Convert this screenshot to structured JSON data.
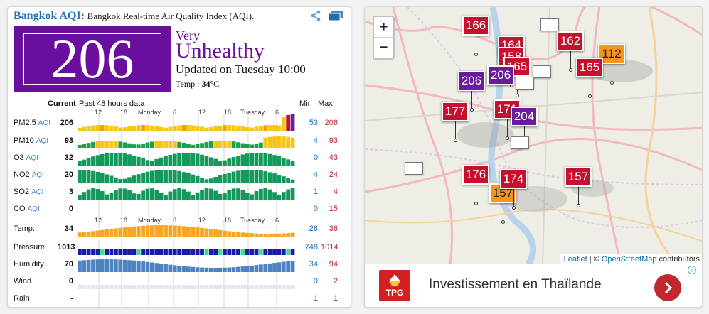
{
  "header": {
    "city": "Bangkok AQI:",
    "description": "Bangkok Real-time Air Quality Index (AQI)."
  },
  "aqi": {
    "value": "206",
    "level_line1": "Very",
    "level_line2": "Unhealthy",
    "updated": "Updated on Tuesday 10:00",
    "temp_label": "Temp.:",
    "temp_value": "34",
    "temp_unit": "°C",
    "color": "#6a0f9d"
  },
  "table": {
    "current_label": "Current",
    "history_label": "Past 48 hours data",
    "min_label": "Min",
    "max_label": "Max",
    "tick_labels": [
      "12",
      "18",
      "Monday",
      "6",
      "12",
      "18",
      "Tuesday",
      "6"
    ],
    "rows": [
      {
        "name": "PM2.5",
        "sub": "AQI",
        "current": "206",
        "min": "53",
        "max": "206"
      },
      {
        "name": "PM10",
        "sub": "AQI",
        "current": "93",
        "min": "4",
        "max": "93"
      },
      {
        "name": "O3",
        "sub": "AQI",
        "current": "32",
        "min": "0",
        "max": "43"
      },
      {
        "name": "NO2",
        "sub": "AQI",
        "current": "20",
        "min": "4",
        "max": "24"
      },
      {
        "name": "SO2",
        "sub": "AQI",
        "current": "3",
        "min": "1",
        "max": "4"
      },
      {
        "name": "CO",
        "sub": "AQI",
        "current": "0",
        "min": "0",
        "max": "15"
      },
      {
        "name": "Temp.",
        "sub": "",
        "current": "34",
        "min": "28",
        "max": "36"
      },
      {
        "name": "Pressure",
        "sub": "",
        "current": "1013",
        "min": "748",
        "max": "1014"
      },
      {
        "name": "Humidity",
        "sub": "",
        "current": "70",
        "min": "34",
        "max": "94"
      },
      {
        "name": "Wind",
        "sub": "",
        "current": "0",
        "min": "0",
        "max": "2"
      },
      {
        "name": "Rain",
        "sub": "",
        "current": "-",
        "min": "1",
        "max": "1"
      }
    ]
  },
  "map": {
    "zoom_in": "+",
    "zoom_out": "−",
    "markers": [
      {
        "value": "166",
        "color": "#c8102e"
      },
      {
        "value": "164",
        "color": "#c8102e"
      },
      {
        "value": "158",
        "color": "#c8102e"
      },
      {
        "value": "165",
        "color": "#c8102e"
      },
      {
        "value": "162",
        "color": "#c8102e"
      },
      {
        "value": "112",
        "color": "#f7941d"
      },
      {
        "value": "165",
        "color": "#c8102e"
      },
      {
        "value": "206",
        "color": "#6a1b9a"
      },
      {
        "value": "206",
        "color": "#6a1b9a"
      },
      {
        "value": "177",
        "color": "#c8102e"
      },
      {
        "value": "171",
        "color": "#c8102e"
      },
      {
        "value": "204",
        "color": "#6a1b9a"
      },
      {
        "value": "176",
        "color": "#c8102e"
      },
      {
        "value": "157",
        "color": "#f7941d"
      },
      {
        "value": "174",
        "color": "#c8102e"
      },
      {
        "value": "157",
        "color": "#c8102e"
      }
    ],
    "attribution_leaflet": "Leaflet",
    "attribution_sep": " | © ",
    "attribution_osm": "OpenStreetMap",
    "attribution_contrib": " contributors"
  },
  "ad": {
    "logo_text": "TPG",
    "text": "Investissement en Thaïlande",
    "info": "i"
  }
}
